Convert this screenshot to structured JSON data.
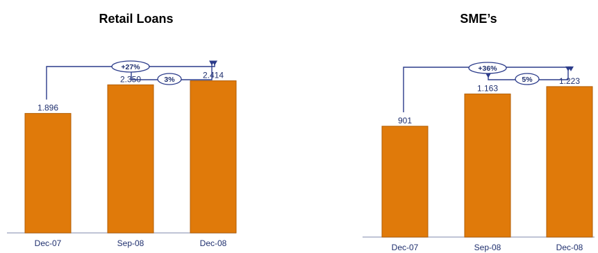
{
  "colors": {
    "bar": "#e07a0a",
    "bar_stroke": "#b25e05",
    "text": "#1f2f6e",
    "connector": "#2b3b8a",
    "axis": "#aab0c8"
  },
  "chart_data": [
    {
      "type": "bar",
      "title": "Retail Loans",
      "categories": [
        "Dec-07",
        "Sep-08",
        "Dec-08"
      ],
      "values": [
        1896,
        2350,
        2414
      ],
      "value_labels": [
        "1.896",
        "2.350",
        "2.414"
      ],
      "ylim": [
        0,
        3300
      ],
      "growth_annotations": [
        {
          "from": "Dec-07",
          "to": "Dec-08",
          "label": "+27%"
        },
        {
          "from": "Sep-08",
          "to": "Dec-08",
          "label": "3%"
        }
      ]
    },
    {
      "type": "bar",
      "title": "SME’s",
      "categories": [
        "Dec-07",
        "Sep-08",
        "Dec-08"
      ],
      "values": [
        901,
        1163,
        1223
      ],
      "value_labels": [
        "901",
        "1.163",
        "1.223"
      ],
      "ylim": [
        0,
        1690
      ],
      "growth_annotations": [
        {
          "from": "Dec-07",
          "to": "Dec-08",
          "label": "+36%"
        },
        {
          "from": "Sep-08",
          "to": "Dec-08",
          "label": "5%"
        }
      ]
    }
  ]
}
